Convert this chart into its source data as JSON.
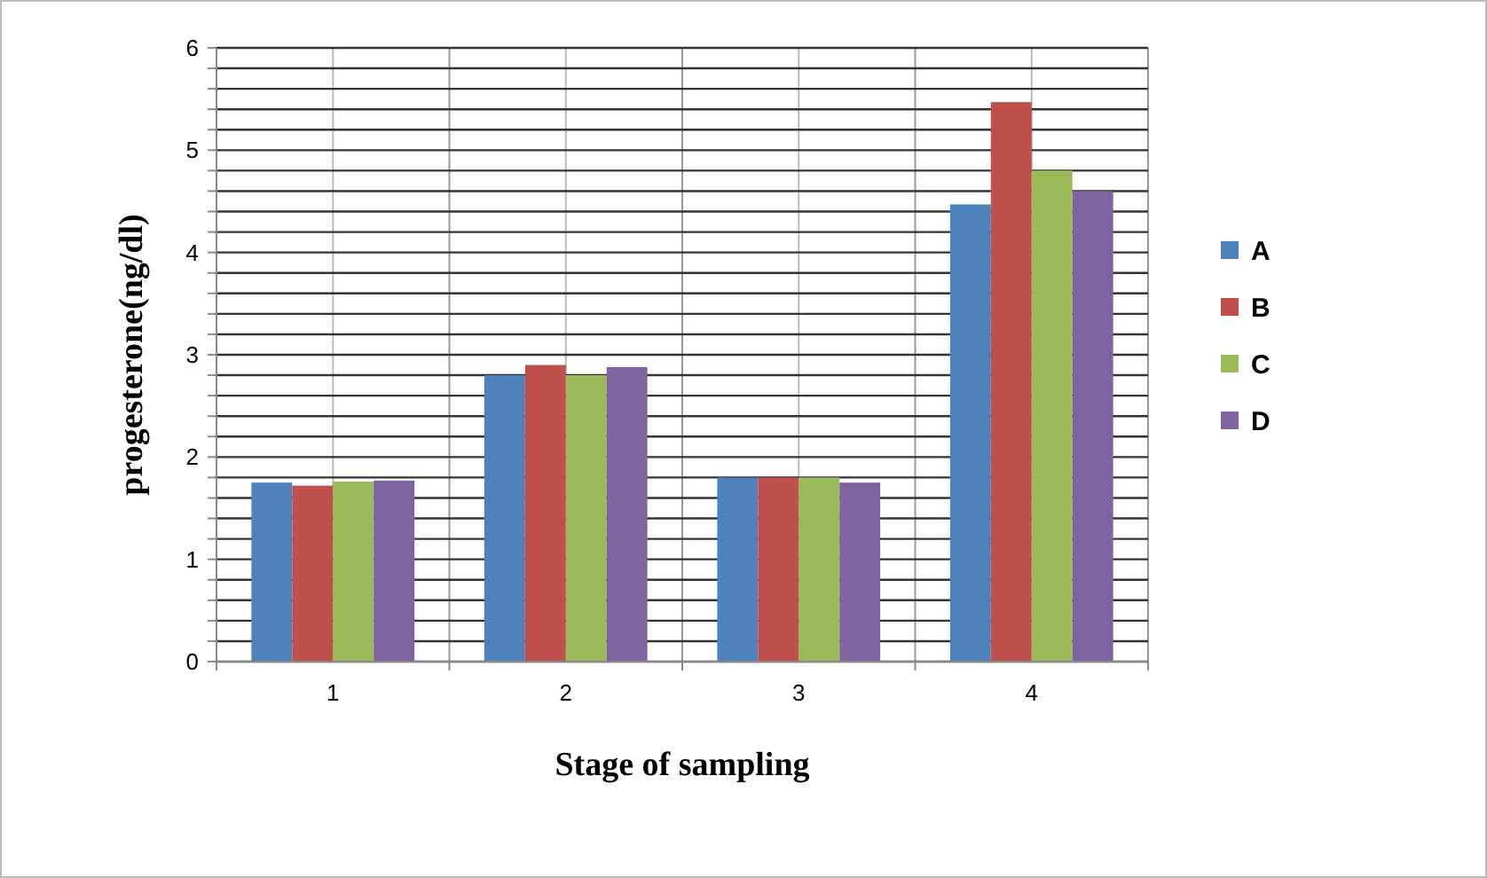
{
  "chart_data": {
    "type": "bar",
    "xlabel": "Stage of sampling",
    "ylabel": "progesterone(ng/dl)",
    "categories": [
      "1",
      "2",
      "3",
      "4"
    ],
    "series": [
      {
        "name": "A",
        "color": "#4f81bd",
        "values": [
          1.75,
          2.8,
          1.8,
          4.47
        ]
      },
      {
        "name": "B",
        "color": "#c0504d",
        "values": [
          1.72,
          2.9,
          1.8,
          5.47
        ]
      },
      {
        "name": "C",
        "color": "#9bbb59",
        "values": [
          1.76,
          2.8,
          1.8,
          4.8
        ]
      },
      {
        "name": "D",
        "color": "#8064a2",
        "values": [
          1.77,
          2.88,
          1.75,
          4.6
        ]
      }
    ],
    "ylim": [
      0,
      6
    ],
    "yticks": [
      0,
      {
        "value": 0.2,
        "label": null
      },
      {
        "value": 0.4,
        "label": null
      },
      {
        "value": 0.6,
        "label": null
      },
      {
        "value": 0.8,
        "label": null
      },
      1,
      {
        "value": 1.2,
        "label": null
      },
      {
        "value": 1.4,
        "label": null
      },
      {
        "value": 1.6,
        "label": null
      },
      {
        "value": 1.8,
        "label": null
      },
      2,
      {
        "value": 2.2,
        "label": null
      },
      {
        "value": 2.4,
        "label": null
      },
      {
        "value": 2.6,
        "label": null
      },
      {
        "value": 2.8,
        "label": null
      },
      3,
      {
        "value": 3.2,
        "label": null
      },
      {
        "value": 3.4,
        "label": null
      },
      {
        "value": 3.6,
        "label": null
      },
      {
        "value": 3.8,
        "label": null
      },
      4,
      {
        "value": 4.2,
        "label": null
      },
      {
        "value": 4.4,
        "label": null
      },
      {
        "value": 4.6,
        "label": null
      },
      {
        "value": 4.8,
        "label": null
      },
      5,
      {
        "value": 5.2,
        "label": null
      },
      {
        "value": 5.4,
        "label": null
      },
      {
        "value": 5.6,
        "label": null
      },
      {
        "value": 5.8,
        "label": null
      },
      6
    ],
    "grid": true,
    "legend": "right"
  }
}
